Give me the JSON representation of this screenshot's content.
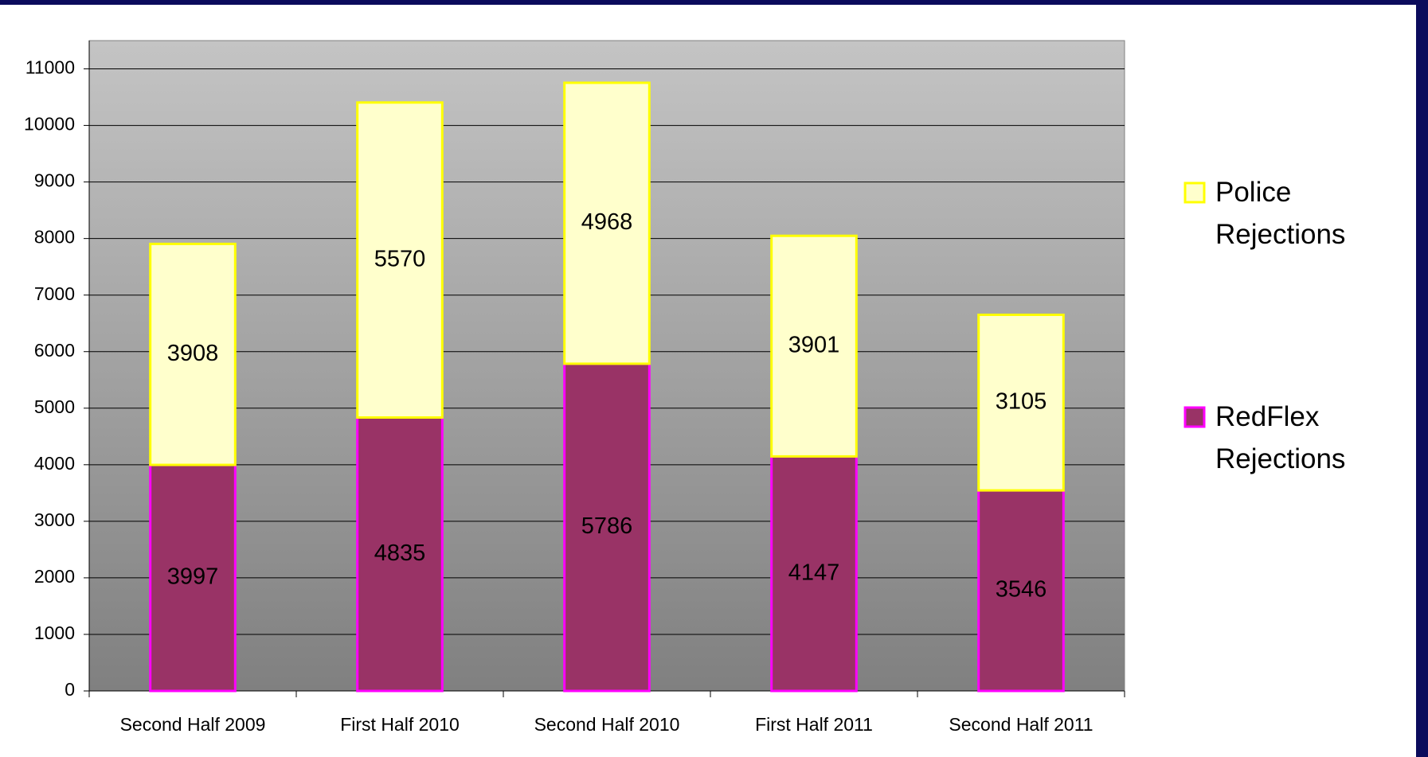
{
  "chart_data": {
    "type": "stacked_bar",
    "categories": [
      "Second Half 2009",
      "First Half 2010",
      "Second Half 2010",
      "First Half 2011",
      "Second Half 2011"
    ],
    "series": [
      {
        "name": "RedFlex Rejections",
        "color": "#993366",
        "edge_color": "#ff00ff",
        "values": [
          3997,
          4835,
          5786,
          4147,
          3546
        ]
      },
      {
        "name": "Police Rejections",
        "color": "#ffffcc",
        "edge_color": "#ffff00",
        "values": [
          3908,
          5570,
          4968,
          3901,
          3105
        ]
      }
    ],
    "ylim": [
      0,
      11500
    ],
    "yticks": [
      0,
      1000,
      2000,
      3000,
      4000,
      5000,
      6000,
      7000,
      8000,
      9000,
      10000,
      11000
    ],
    "grid": true,
    "legend": "right"
  }
}
